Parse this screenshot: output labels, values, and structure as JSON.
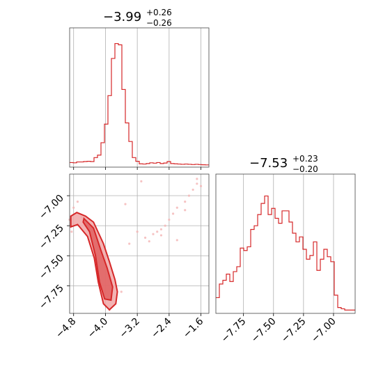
{
  "colors": {
    "series": "#d62728",
    "fill": "#f0a6a6",
    "scatter": "#f4b4b4",
    "grid": "#b0b0b0"
  },
  "chart_data": {
    "type": "corner",
    "parameters": [
      {
        "title": {
          "median": "−3.99",
          "upper": "+0.26",
          "lower": "−0.26"
        },
        "range": [
          -4.9,
          -1.4
        ],
        "ticks": [
          -4.8,
          -4.0,
          -3.2,
          -2.4,
          -1.6
        ],
        "tick_labels": [
          "−4.8",
          "−4.0",
          "−3.2",
          "−2.4",
          "−1.6"
        ],
        "histogram": {
          "bins_x_start": -4.9,
          "bin_width": 0.0875,
          "counts": [
            0.02,
            0.018,
            0.025,
            0.025,
            0.028,
            0.03,
            0.028,
            0.06,
            0.08,
            0.18,
            0.33,
            0.56,
            0.86,
            0.98,
            0.97,
            0.61,
            0.34,
            0.19,
            0.06,
            0.03,
            0.01,
            0.008,
            0.012,
            0.018,
            0.015,
            0.02,
            0.012,
            0.016,
            0.028,
            0.012,
            0.01,
            0.008,
            0.006,
            0.008,
            0.006,
            0.004,
            0.006,
            0.004,
            0.002,
            0.001
          ]
        }
      },
      {
        "title": {
          "median": "−7.53",
          "upper": "+0.23",
          "lower": "−0.20"
        },
        "range": [
          -7.98,
          -6.82
        ],
        "ticks": [
          -7.75,
          -7.5,
          -7.25,
          -7.0
        ],
        "tick_labels": [
          "−7.75",
          "−7.50",
          "−7.25",
          "−7.00"
        ],
        "histogram": {
          "bins_x_start": -7.98,
          "bin_width": 0.029,
          "counts": [
            0.11,
            0.22,
            0.25,
            0.3,
            0.24,
            0.32,
            0.36,
            0.51,
            0.49,
            0.52,
            0.66,
            0.69,
            0.78,
            0.87,
            0.93,
            0.78,
            0.83,
            0.75,
            0.71,
            0.81,
            0.81,
            0.72,
            0.63,
            0.56,
            0.6,
            0.5,
            0.42,
            0.45,
            0.56,
            0.33,
            0.42,
            0.5,
            0.44,
            0.4,
            0.13,
            0.03,
            0.02,
            0.01,
            0.01,
            0.01
          ]
        }
      }
    ],
    "contour_2d": {
      "x_range": [
        -4.9,
        -1.4
      ],
      "y_range": [
        -7.98,
        -6.82
      ],
      "y_ticks": [
        -7.0,
        -7.25,
        -7.5,
        -7.75
      ],
      "y_tick_labels": [
        "−7.00",
        "−7.25",
        "−7.50",
        "−7.75"
      ],
      "inner_band": [
        [
          -4.54,
          -7.19
        ],
        [
          -4.3,
          -7.27
        ],
        [
          -4.12,
          -7.45
        ],
        [
          -3.96,
          -7.6
        ],
        [
          -3.82,
          -7.76
        ],
        [
          -3.86,
          -7.87
        ],
        [
          -4.02,
          -7.86
        ],
        [
          -4.15,
          -7.72
        ],
        [
          -4.25,
          -7.5
        ],
        [
          -4.4,
          -7.3
        ],
        [
          -4.56,
          -7.22
        ]
      ],
      "outer_band": [
        [
          -4.87,
          -7.17
        ],
        [
          -4.72,
          -7.14
        ],
        [
          -4.5,
          -7.17
        ],
        [
          -4.3,
          -7.22
        ],
        [
          -4.05,
          -7.4
        ],
        [
          -3.9,
          -7.55
        ],
        [
          -3.76,
          -7.7
        ],
        [
          -3.7,
          -7.8
        ],
        [
          -3.74,
          -7.9
        ],
        [
          -3.9,
          -7.95
        ],
        [
          -4.05,
          -7.9
        ],
        [
          -4.18,
          -7.72
        ],
        [
          -4.28,
          -7.52
        ],
        [
          -4.45,
          -7.34
        ],
        [
          -4.7,
          -7.24
        ],
        [
          -4.87,
          -7.26
        ]
      ],
      "scatter_x": [
        -4.9,
        -4.85,
        -4.8,
        -4.7,
        -4.6,
        -4.5,
        -3.9,
        -3.6,
        -3.4,
        -3.2,
        -3.0,
        -2.9,
        -2.8,
        -2.7,
        -2.6,
        -2.5,
        -2.4,
        -2.3,
        -2.2,
        -2.0,
        -1.9,
        -1.8,
        -1.7,
        -1.6,
        -3.1,
        -2.6,
        -2.2,
        -3.5,
        -2.0,
        -1.7
      ],
      "scatter_y": [
        -7.2,
        -7.3,
        -7.1,
        -7.05,
        -7.18,
        -7.25,
        -7.95,
        -7.8,
        -7.4,
        -7.3,
        -7.35,
        -7.38,
        -7.32,
        -7.3,
        -7.28,
        -7.25,
        -7.2,
        -7.15,
        -7.1,
        -7.05,
        -7.0,
        -6.95,
        -6.9,
        -6.92,
        -6.88,
        -7.33,
        -7.37,
        -7.07,
        -7.12,
        -6.86
      ]
    }
  }
}
